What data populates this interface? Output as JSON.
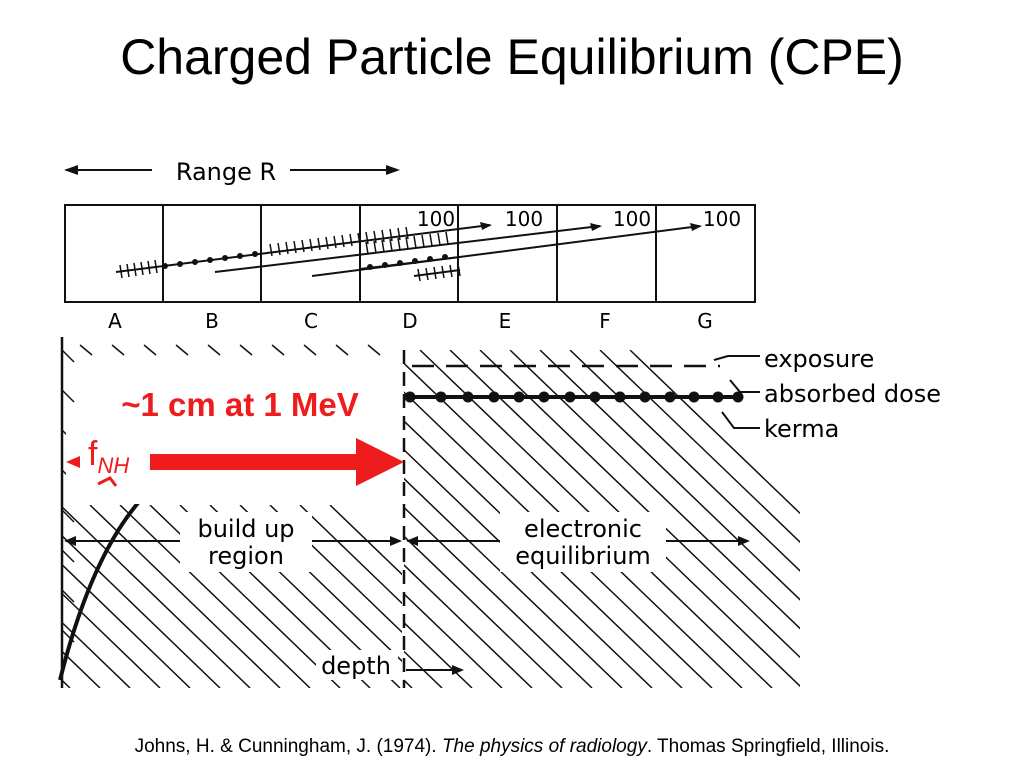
{
  "title": "Charged Particle Equilibrium (CPE)",
  "range_label": "Range R",
  "column_labels": [
    "A",
    "B",
    "C",
    "D",
    "E",
    "F",
    "G"
  ],
  "track_end_labels": [
    "100",
    "100",
    "100",
    "100"
  ],
  "energy_note": "~1 cm at 1 MeV",
  "fnh": {
    "base": "f",
    "sub": "NH"
  },
  "legend": {
    "exposure": "exposure",
    "absorbed_dose": "absorbed dose",
    "kerma": "kerma"
  },
  "regions": {
    "buildup_line1": "build up",
    "buildup_line2": "region",
    "equilibrium_line1": "electronic",
    "equilibrium_line2": "equilibrium"
  },
  "depth_label": "depth",
  "citation": {
    "authors": "Johns, H. & Cunningham, J. (1974). ",
    "book": "The physics of radiology",
    "rest": ". Thomas Springfield, Illinois."
  },
  "colors": {
    "accent": "#ee1c1c",
    "ink": "#111111"
  }
}
